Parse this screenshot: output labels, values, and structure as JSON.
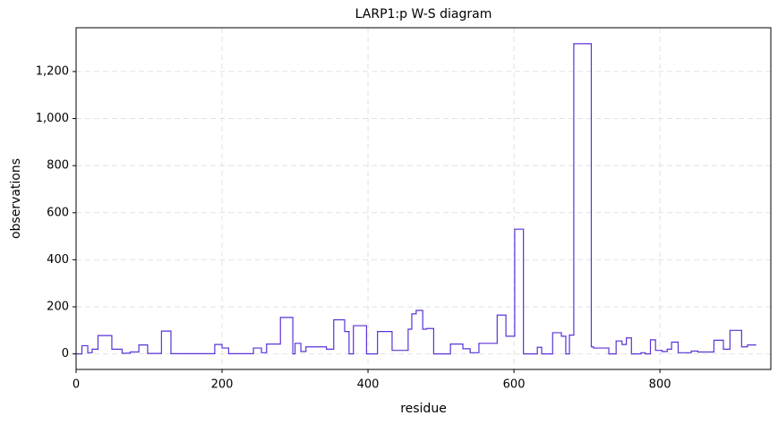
{
  "chart_data": {
    "type": "line",
    "title": "LARP1:p W-S diagram",
    "x_label": "residue",
    "y_label": "observations",
    "xlim": [
      0,
      952
    ],
    "ylim": [
      -66,
      1386
    ],
    "xticks": [
      0,
      200,
      400,
      600,
      800
    ],
    "yticks": [
      0,
      200,
      400,
      600,
      800,
      {
        "value": 1000,
        "label": "1,000"
      },
      {
        "value": 1200,
        "label": "1,200"
      }
    ],
    "grid": true,
    "series": [
      {
        "color": "#5b32d6",
        "x": [
          0,
          8,
          8,
          16,
          16,
          22,
          22,
          30,
          30,
          49,
          49,
          63,
          63,
          74,
          74,
          86,
          86,
          98,
          98,
          117,
          117,
          130,
          130,
          190,
          190,
          200,
          200,
          209,
          209,
          243,
          243,
          254,
          254,
          261,
          261,
          280,
          280,
          297,
          297,
          300,
          300,
          308,
          308,
          315,
          315,
          343,
          343,
          353,
          353,
          368,
          368,
          374,
          374,
          380,
          380,
          398,
          398,
          413,
          413,
          433,
          433,
          455,
          455,
          460,
          460,
          466,
          466,
          475,
          475,
          480,
          480,
          490,
          490,
          513,
          513,
          530,
          530,
          540,
          540,
          552,
          552,
          577,
          577,
          589,
          589,
          601,
          601,
          613,
          613,
          632,
          632,
          638,
          638,
          653,
          653,
          665,
          665,
          671,
          671,
          676,
          676,
          682,
          682,
          706,
          706,
          709,
          709,
          730,
          730,
          740,
          740,
          748,
          748,
          754,
          754,
          761,
          761,
          774,
          774,
          780,
          780,
          787,
          787,
          794,
          794,
          803,
          803,
          810,
          810,
          816,
          816,
          825,
          825,
          843,
          843,
          852,
          852,
          874,
          874,
          887,
          887,
          896,
          896,
          912,
          912,
          920,
          920,
          932
        ],
        "values": [
          0,
          0,
          35,
          35,
          5,
          5,
          20,
          20,
          78,
          78,
          20,
          20,
          3,
          3,
          8,
          8,
          38,
          38,
          2,
          2,
          97,
          97,
          1,
          1,
          40,
          40,
          25,
          25,
          1,
          1,
          25,
          25,
          5,
          5,
          42,
          42,
          155,
          155,
          0,
          0,
          45,
          45,
          10,
          10,
          30,
          30,
          20,
          20,
          145,
          145,
          95,
          95,
          0,
          0,
          120,
          120,
          0,
          0,
          95,
          95,
          15,
          15,
          105,
          105,
          170,
          170,
          185,
          185,
          105,
          105,
          108,
          108,
          0,
          0,
          42,
          42,
          22,
          22,
          5,
          5,
          45,
          45,
          165,
          165,
          75,
          75,
          530,
          530,
          0,
          0,
          28,
          28,
          0,
          0,
          90,
          90,
          75,
          75,
          0,
          0,
          80,
          80,
          1318,
          1318,
          30,
          30,
          25,
          25,
          0,
          0,
          55,
          55,
          40,
          40,
          68,
          68,
          0,
          0,
          5,
          5,
          0,
          0,
          60,
          60,
          15,
          15,
          10,
          10,
          20,
          20,
          50,
          50,
          5,
          5,
          12,
          12,
          8,
          8,
          58,
          58,
          20,
          20,
          100,
          100,
          30,
          30,
          38,
          38
        ]
      }
    ]
  }
}
